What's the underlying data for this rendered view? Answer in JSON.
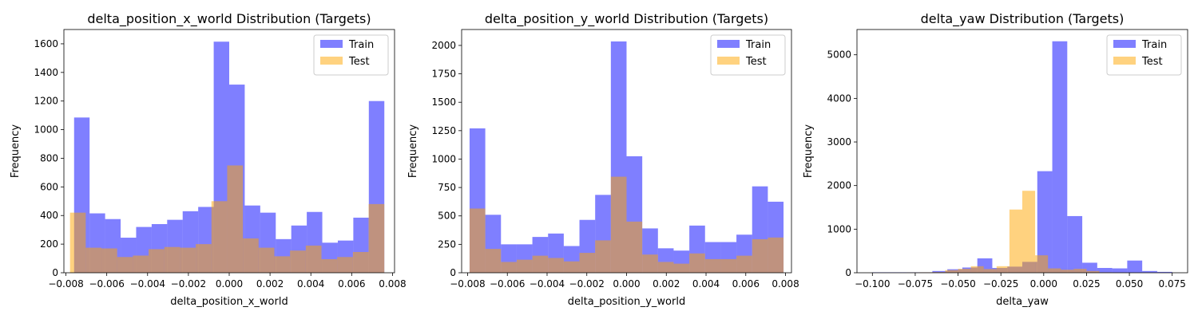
{
  "colors": {
    "train": "#0000ff",
    "test": "#ffa500",
    "train_alpha": 0.5,
    "test_alpha": 0.5
  },
  "chart_data": [
    {
      "type": "histogram",
      "title": "delta_position_x_world Distribution (Targets)",
      "xlabel": "delta_position_x_world",
      "ylabel": "Frequency",
      "xlim": [
        -0.0081,
        0.0081
      ],
      "ylim": [
        0,
        1700
      ],
      "xticks": [
        -0.008,
        -0.006,
        -0.004,
        -0.002,
        0.0,
        0.002,
        0.004,
        0.006,
        0.008
      ],
      "xtick_labels": [
        "−0.008",
        "−0.006",
        "−0.004",
        "−0.002",
        "0.000",
        "0.002",
        "0.004",
        "0.006",
        "0.008"
      ],
      "yticks": [
        0,
        200,
        400,
        600,
        800,
        1000,
        1200,
        1400,
        1600
      ],
      "ytick_labels": [
        "0",
        "200",
        "400",
        "600",
        "800",
        "1000",
        "1200",
        "1400",
        "1600"
      ],
      "legend": {
        "position": "upper right",
        "entries": [
          "Train",
          "Test"
        ]
      },
      "series": [
        {
          "name": "Train",
          "range": [
            -0.0076,
            0.0076
          ],
          "values": [
            1085,
            415,
            375,
            245,
            320,
            340,
            370,
            430,
            460,
            1615,
            1315,
            470,
            420,
            235,
            330,
            425,
            210,
            225,
            385,
            1200
          ]
        },
        {
          "name": "Test",
          "range": [
            -0.0078,
            0.0076
          ],
          "values": [
            420,
            175,
            170,
            110,
            120,
            165,
            180,
            175,
            200,
            500,
            750,
            240,
            175,
            115,
            155,
            190,
            95,
            110,
            145,
            480
          ]
        }
      ]
    },
    {
      "type": "histogram",
      "title": "delta_position_y_world Distribution (Targets)",
      "xlabel": "delta_position_y_world",
      "ylabel": "Frequency",
      "xlim": [
        -0.0083,
        0.0083
      ],
      "ylim": [
        0,
        2140
      ],
      "xticks": [
        -0.008,
        -0.006,
        -0.004,
        -0.002,
        0.0,
        0.002,
        0.004,
        0.006,
        0.008
      ],
      "xtick_labels": [
        "−0.008",
        "−0.006",
        "−0.004",
        "−0.002",
        "0.000",
        "0.002",
        "0.004",
        "0.006",
        "0.008"
      ],
      "yticks": [
        0,
        250,
        500,
        750,
        1000,
        1250,
        1500,
        1750,
        2000
      ],
      "ytick_labels": [
        "0",
        "250",
        "500",
        "750",
        "1000",
        "1250",
        "1500",
        "1750",
        "2000"
      ],
      "legend": {
        "position": "upper right",
        "entries": [
          "Train",
          "Test"
        ]
      },
      "series": [
        {
          "name": "Train",
          "range": [
            -0.0079,
            0.0079
          ],
          "values": [
            1270,
            510,
            250,
            250,
            315,
            345,
            235,
            465,
            685,
            2035,
            1025,
            390,
            215,
            195,
            415,
            270,
            270,
            335,
            760,
            625
          ]
        },
        {
          "name": "Test",
          "range": [
            -0.0079,
            0.0079
          ],
          "values": [
            565,
            210,
            95,
            115,
            150,
            130,
            100,
            175,
            285,
            845,
            450,
            160,
            95,
            80,
            170,
            120,
            120,
            150,
            295,
            310
          ]
        }
      ]
    },
    {
      "type": "histogram",
      "title": "delta_yaw Distribution (Targets)",
      "xlabel": "delta_yaw",
      "ylabel": "Frequency",
      "xlim": [
        -0.109,
        0.084
      ],
      "ylim": [
        0,
        5580
      ],
      "xticks": [
        -0.1,
        -0.075,
        -0.05,
        -0.025,
        0.0,
        0.025,
        0.05,
        0.075
      ],
      "xtick_labels": [
        "−0.100",
        "−0.075",
        "−0.050",
        "−0.025",
        "0.000",
        "0.025",
        "0.050",
        "0.075"
      ],
      "yticks": [
        0,
        1000,
        2000,
        3000,
        4000,
        5000
      ],
      "ytick_labels": [
        "0",
        "1000",
        "2000",
        "3000",
        "4000",
        "5000"
      ],
      "legend": {
        "position": "upper right",
        "entries": [
          "Train",
          "Test"
        ]
      },
      "series": [
        {
          "name": "Train",
          "range": [
            -0.1,
            0.075
          ],
          "values": [
            10,
            10,
            10,
            10,
            40,
            80,
            120,
            330,
            110,
            140,
            250,
            2330,
            5310,
            1300,
            230,
            110,
            100,
            280,
            40,
            20
          ]
        },
        {
          "name": "Test",
          "range": [
            -0.08,
            0.07
          ],
          "values": [
            5,
            10,
            15,
            60,
            90,
            150,
            85,
            150,
            1450,
            1880,
            400,
            100,
            70,
            90,
            40,
            10,
            5,
            3,
            2,
            1
          ]
        }
      ]
    }
  ]
}
